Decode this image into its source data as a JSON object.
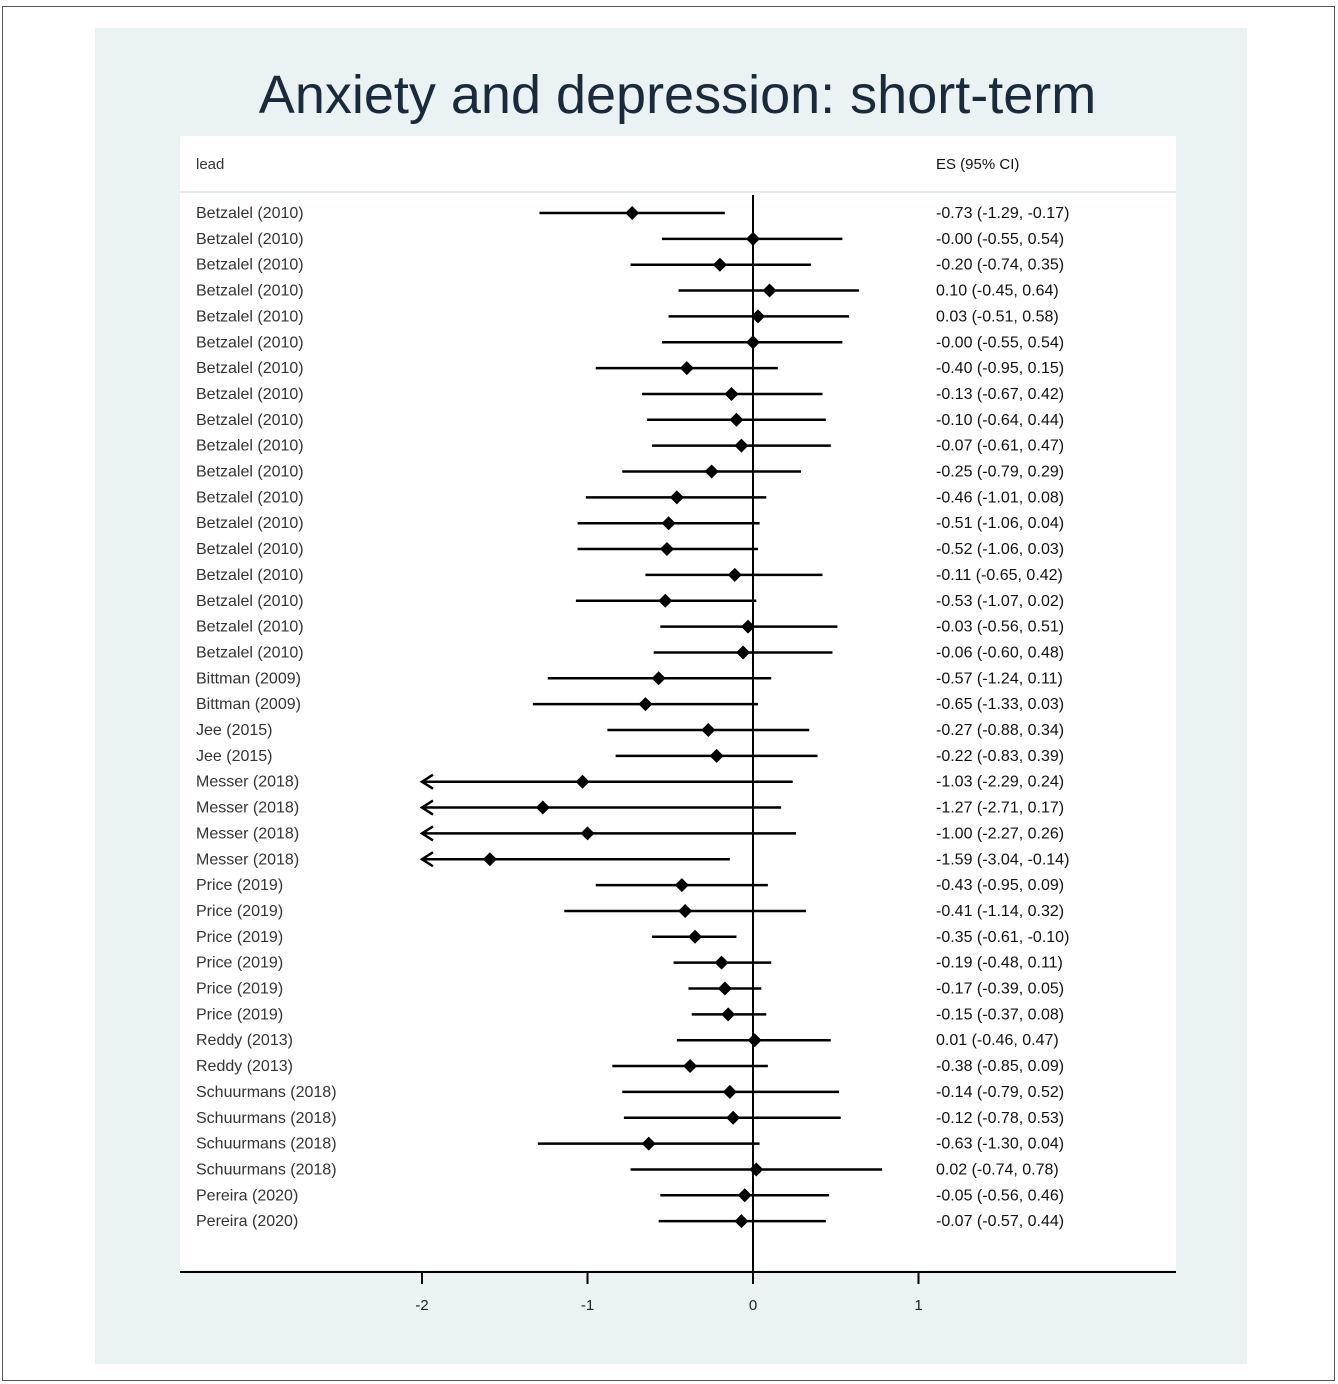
{
  "chart_data": {
    "type": "forest",
    "title": "Anxiety and depression: short-term",
    "column_headers": {
      "study": "lead",
      "estimate": "ES (95% CI)"
    },
    "xlim": [
      -2,
      1
    ],
    "xticks": [
      "-2",
      "-1",
      "0",
      "1"
    ],
    "reference_line": 0,
    "rows": [
      {
        "study": "Betzalel (2010)",
        "es": -0.73,
        "lo": -1.29,
        "hi": -0.17,
        "label": "-0.73 (-1.29, -0.17)"
      },
      {
        "study": "Betzalel (2010)",
        "es": 0.0,
        "lo": -0.55,
        "hi": 0.54,
        "label": "-0.00 (-0.55, 0.54)"
      },
      {
        "study": "Betzalel (2010)",
        "es": -0.2,
        "lo": -0.74,
        "hi": 0.35,
        "label": "-0.20 (-0.74, 0.35)"
      },
      {
        "study": "Betzalel (2010)",
        "es": 0.1,
        "lo": -0.45,
        "hi": 0.64,
        "label": "0.10 (-0.45, 0.64)"
      },
      {
        "study": "Betzalel (2010)",
        "es": 0.03,
        "lo": -0.51,
        "hi": 0.58,
        "label": "0.03 (-0.51, 0.58)"
      },
      {
        "study": "Betzalel (2010)",
        "es": 0.0,
        "lo": -0.55,
        "hi": 0.54,
        "label": "-0.00 (-0.55, 0.54)"
      },
      {
        "study": "Betzalel (2010)",
        "es": -0.4,
        "lo": -0.95,
        "hi": 0.15,
        "label": "-0.40 (-0.95, 0.15)"
      },
      {
        "study": "Betzalel (2010)",
        "es": -0.13,
        "lo": -0.67,
        "hi": 0.42,
        "label": "-0.13 (-0.67, 0.42)"
      },
      {
        "study": "Betzalel (2010)",
        "es": -0.1,
        "lo": -0.64,
        "hi": 0.44,
        "label": "-0.10 (-0.64, 0.44)"
      },
      {
        "study": "Betzalel (2010)",
        "es": -0.07,
        "lo": -0.61,
        "hi": 0.47,
        "label": "-0.07 (-0.61, 0.47)"
      },
      {
        "study": "Betzalel (2010)",
        "es": -0.25,
        "lo": -0.79,
        "hi": 0.29,
        "label": "-0.25 (-0.79, 0.29)"
      },
      {
        "study": "Betzalel (2010)",
        "es": -0.46,
        "lo": -1.01,
        "hi": 0.08,
        "label": "-0.46 (-1.01, 0.08)"
      },
      {
        "study": "Betzalel (2010)",
        "es": -0.51,
        "lo": -1.06,
        "hi": 0.04,
        "label": "-0.51 (-1.06, 0.04)"
      },
      {
        "study": "Betzalel (2010)",
        "es": -0.52,
        "lo": -1.06,
        "hi": 0.03,
        "label": "-0.52 (-1.06, 0.03)"
      },
      {
        "study": "Betzalel (2010)",
        "es": -0.11,
        "lo": -0.65,
        "hi": 0.42,
        "label": "-0.11 (-0.65, 0.42)"
      },
      {
        "study": "Betzalel (2010)",
        "es": -0.53,
        "lo": -1.07,
        "hi": 0.02,
        "label": "-0.53 (-1.07, 0.02)"
      },
      {
        "study": "Betzalel (2010)",
        "es": -0.03,
        "lo": -0.56,
        "hi": 0.51,
        "label": "-0.03 (-0.56, 0.51)"
      },
      {
        "study": "Betzalel (2010)",
        "es": -0.06,
        "lo": -0.6,
        "hi": 0.48,
        "label": "-0.06 (-0.60, 0.48)"
      },
      {
        "study": "Bittman (2009)",
        "es": -0.57,
        "lo": -1.24,
        "hi": 0.11,
        "label": "-0.57 (-1.24, 0.11)"
      },
      {
        "study": "Bittman (2009)",
        "es": -0.65,
        "lo": -1.33,
        "hi": 0.03,
        "label": "-0.65 (-1.33, 0.03)"
      },
      {
        "study": "Jee (2015)",
        "es": -0.27,
        "lo": -0.88,
        "hi": 0.34,
        "label": "-0.27 (-0.88, 0.34)"
      },
      {
        "study": "Jee (2015)",
        "es": -0.22,
        "lo": -0.83,
        "hi": 0.39,
        "label": "-0.22 (-0.83, 0.39)"
      },
      {
        "study": "Messer (2018)",
        "es": -1.03,
        "lo": -2.29,
        "hi": 0.24,
        "label": "-1.03 (-2.29, 0.24)"
      },
      {
        "study": "Messer (2018)",
        "es": -1.27,
        "lo": -2.71,
        "hi": 0.17,
        "label": "-1.27 (-2.71, 0.17)"
      },
      {
        "study": "Messer (2018)",
        "es": -1.0,
        "lo": -2.27,
        "hi": 0.26,
        "label": "-1.00 (-2.27, 0.26)"
      },
      {
        "study": "Messer (2018)",
        "es": -1.59,
        "lo": -3.04,
        "hi": -0.14,
        "label": "-1.59 (-3.04, -0.14)"
      },
      {
        "study": "Price (2019)",
        "es": -0.43,
        "lo": -0.95,
        "hi": 0.09,
        "label": "-0.43 (-0.95, 0.09)"
      },
      {
        "study": "Price (2019)",
        "es": -0.41,
        "lo": -1.14,
        "hi": 0.32,
        "label": "-0.41 (-1.14, 0.32)"
      },
      {
        "study": "Price (2019)",
        "es": -0.35,
        "lo": -0.61,
        "hi": -0.1,
        "label": "-0.35 (-0.61, -0.10)"
      },
      {
        "study": "Price (2019)",
        "es": -0.19,
        "lo": -0.48,
        "hi": 0.11,
        "label": "-0.19 (-0.48, 0.11)"
      },
      {
        "study": "Price (2019)",
        "es": -0.17,
        "lo": -0.39,
        "hi": 0.05,
        "label": "-0.17 (-0.39, 0.05)"
      },
      {
        "study": "Price (2019)",
        "es": -0.15,
        "lo": -0.37,
        "hi": 0.08,
        "label": "-0.15 (-0.37, 0.08)"
      },
      {
        "study": "Reddy (2013)",
        "es": 0.01,
        "lo": -0.46,
        "hi": 0.47,
        "label": "0.01 (-0.46, 0.47)"
      },
      {
        "study": "Reddy (2013)",
        "es": -0.38,
        "lo": -0.85,
        "hi": 0.09,
        "label": "-0.38 (-0.85, 0.09)"
      },
      {
        "study": "Schuurmans (2018)",
        "es": -0.14,
        "lo": -0.79,
        "hi": 0.52,
        "label": "-0.14 (-0.79, 0.52)"
      },
      {
        "study": "Schuurmans (2018)",
        "es": -0.12,
        "lo": -0.78,
        "hi": 0.53,
        "label": "-0.12 (-0.78, 0.53)"
      },
      {
        "study": "Schuurmans (2018)",
        "es": -0.63,
        "lo": -1.3,
        "hi": 0.04,
        "label": "-0.63 (-1.30, 0.04)"
      },
      {
        "study": "Schuurmans (2018)",
        "es": 0.02,
        "lo": -0.74,
        "hi": 0.78,
        "label": "0.02 (-0.74, 0.78)"
      },
      {
        "study": "Pereira (2020)",
        "es": -0.05,
        "lo": -0.56,
        "hi": 0.46,
        "label": "-0.05 (-0.56, 0.46)"
      },
      {
        "study": "Pereira (2020)",
        "es": -0.07,
        "lo": -0.57,
        "hi": 0.44,
        "label": "-0.07 (-0.57, 0.44)"
      }
    ]
  }
}
